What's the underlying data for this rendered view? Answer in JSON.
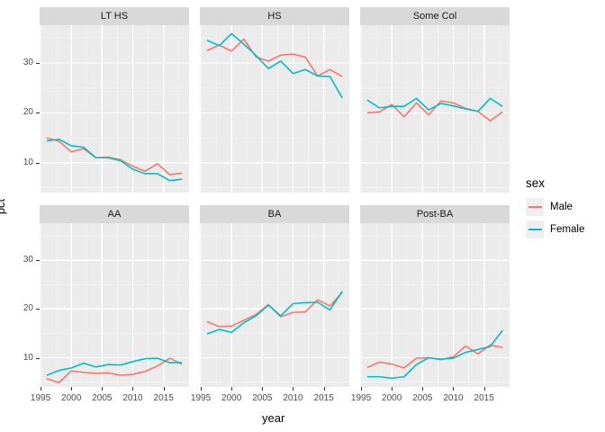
{
  "figure": {
    "y_axis_title": "pct",
    "x_axis_title": "year",
    "legend": {
      "title": "sex",
      "items": [
        {
          "label": "Male",
          "color": "#F8766D"
        },
        {
          "label": "Female",
          "color": "#00BFC4"
        }
      ]
    }
  },
  "chart_data": {
    "type": "line",
    "xlabel": "year",
    "ylabel": "pct",
    "legend_title": "sex",
    "legend_position": "right",
    "grid": true,
    "x": [
      1996,
      1998,
      2000,
      2002,
      2004,
      2006,
      2008,
      2010,
      2012,
      2014,
      2016,
      2018
    ],
    "xlim": [
      1994.85,
      2019.15
    ],
    "ylim": [
      4.0,
      37.6
    ],
    "x_ticks": [
      1995,
      2000,
      2005,
      2010,
      2015
    ],
    "y_ticks": [
      10,
      20,
      30
    ],
    "x_minor_ticks": [
      1997.5,
      2002.5,
      2007.5,
      2012.5,
      2017.5
    ],
    "y_minor_ticks": [
      5,
      15,
      25,
      35
    ],
    "colors": {
      "Male": "#F8766D",
      "Female": "#00BFC4"
    },
    "panel_bg": "#EBEBEB",
    "strip_bg": "#D9D9D9",
    "grid_major_color": "#FFFFFF",
    "grid_minor_color": "#F5F5F5",
    "facets": [
      {
        "name": "LT HS",
        "series": [
          {
            "name": "Male",
            "values": [
              15.0,
              14.3,
              12.2,
              12.8,
              11.0,
              11.1,
              10.6,
              9.3,
              8.3,
              9.8,
              7.6,
              7.9
            ]
          },
          {
            "name": "Female",
            "values": [
              14.4,
              14.7,
              13.4,
              13.1,
              11.0,
              11.0,
              10.4,
              8.7,
              7.8,
              7.8,
              6.4,
              6.7
            ]
          }
        ]
      },
      {
        "name": "HS",
        "series": [
          {
            "name": "Male",
            "values": [
              32.5,
              33.6,
              32.4,
              34.8,
              31.2,
              30.4,
              31.6,
              31.8,
              31.2,
              27.4,
              28.7,
              27.3
            ]
          },
          {
            "name": "Female",
            "values": [
              34.6,
              33.5,
              35.9,
              33.8,
              31.5,
              28.9,
              30.4,
              27.9,
              28.7,
              27.4,
              27.3,
              23.0
            ]
          }
        ]
      },
      {
        "name": "Some Col",
        "series": [
          {
            "name": "Male",
            "values": [
              20.0,
              20.2,
              21.7,
              19.2,
              22.0,
              19.6,
              22.4,
              22.0,
              20.9,
              20.3,
              18.4,
              20.2
            ]
          },
          {
            "name": "Female",
            "values": [
              22.6,
              21.0,
              21.3,
              21.3,
              22.9,
              20.6,
              21.9,
              21.4,
              20.8,
              20.3,
              22.9,
              21.3
            ]
          }
        ]
      },
      {
        "name": "AA",
        "series": [
          {
            "name": "Male",
            "values": [
              5.7,
              4.9,
              7.3,
              7.0,
              6.8,
              6.9,
              6.4,
              6.6,
              7.2,
              8.3,
              9.9,
              8.7
            ]
          },
          {
            "name": "Female",
            "values": [
              6.4,
              7.4,
              7.9,
              8.9,
              8.1,
              8.6,
              8.5,
              9.2,
              9.8,
              9.9,
              9.0,
              9.0
            ]
          }
        ]
      },
      {
        "name": "BA",
        "series": [
          {
            "name": "Male",
            "values": [
              17.4,
              16.4,
              16.5,
              17.7,
              18.9,
              20.9,
              18.4,
              19.3,
              19.4,
              21.9,
              20.6,
              23.4
            ]
          },
          {
            "name": "Female",
            "values": [
              14.9,
              15.8,
              15.2,
              17.2,
              18.6,
              20.8,
              18.6,
              21.1,
              21.3,
              21.4,
              19.8,
              23.6
            ]
          }
        ]
      },
      {
        "name": "Post-BA",
        "series": [
          {
            "name": "Male",
            "values": [
              8.0,
              9.1,
              8.7,
              7.9,
              9.9,
              10.0,
              9.6,
              10.2,
              12.4,
              10.8,
              12.6,
              12.1
            ]
          },
          {
            "name": "Female",
            "values": [
              6.1,
              6.1,
              5.8,
              6.1,
              8.6,
              10.0,
              9.7,
              9.9,
              11.1,
              11.7,
              12.3,
              15.6
            ]
          }
        ]
      }
    ]
  }
}
